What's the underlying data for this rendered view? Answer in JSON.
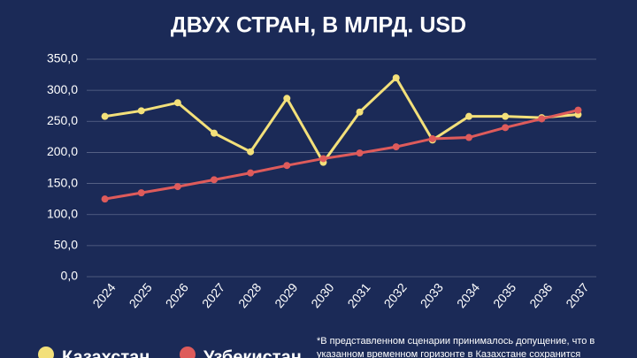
{
  "chart_data": {
    "type": "line",
    "title": "ДВУХ СТРАН, В МЛРД. USD",
    "categories": [
      "2024",
      "2025",
      "2026",
      "2027",
      "2028",
      "2029",
      "2030",
      "2031",
      "2032",
      "2033",
      "2034",
      "2035",
      "2036",
      "2037"
    ],
    "series": [
      {
        "name": "Казахстан",
        "color": "#f3e07a",
        "values": [
          258,
          267,
          280,
          231,
          201,
          287,
          184,
          265,
          320,
          220,
          258,
          258,
          256,
          261
        ]
      },
      {
        "name": "Узбекистан",
        "color": "#de5b5b",
        "values": [
          125,
          135,
          145,
          156,
          167,
          179,
          190,
          199,
          209,
          222,
          224,
          240,
          254,
          268
        ]
      }
    ],
    "ylim": [
      0,
      350
    ],
    "yticks": [
      {
        "value": 0,
        "label": "0,0"
      },
      {
        "value": 50,
        "label": "50,0"
      },
      {
        "value": 100,
        "label": "100,0"
      },
      {
        "value": 150,
        "label": "150,0"
      },
      {
        "value": 200,
        "label": "200,0"
      },
      {
        "value": 250,
        "label": "250,0"
      },
      {
        "value": 300,
        "label": "300,0"
      },
      {
        "value": 350,
        "label": "350,0"
      }
    ],
    "grid": true,
    "legend": "bottom",
    "footnote": [
      "*В представленном сценарии принималось допущение, что в",
      "указанном временном горизонте в Казахстане сохранится"
    ]
  }
}
